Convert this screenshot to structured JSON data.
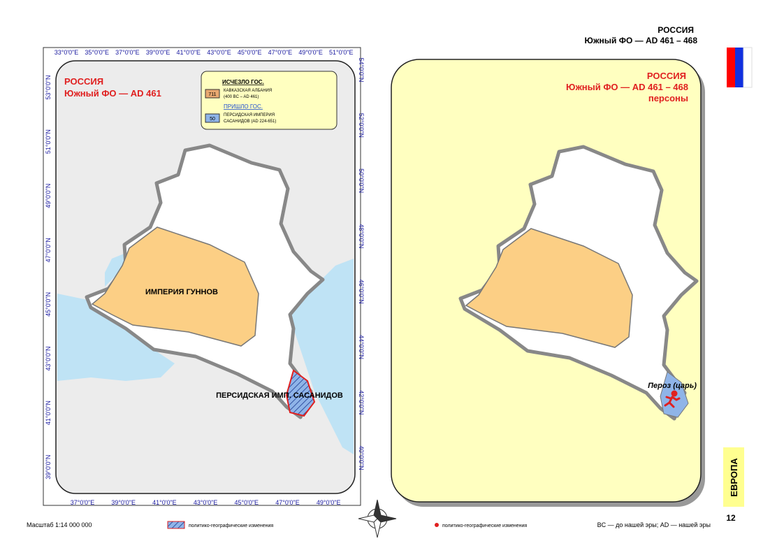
{
  "header": {
    "country": "РОССИЯ",
    "subtitle": "Южный ФО — AD 461 – 468"
  },
  "left_map": {
    "title": "РОССИЯ",
    "subtitle": "Южный ФО — AD 461",
    "legend": {
      "gone_heading": "ИСЧЕЗЛО ГОС.",
      "gone_code": "711",
      "gone_name": "КАВКАЗСКАЯ АЛБАНИЯ",
      "gone_dates": "(400 BC – AD 461)",
      "came_heading": "ПРИШЛО ГОС.",
      "came_code": "50",
      "came_name": "ПЕРСИДСКАЯ ИМПЕРИЯ",
      "came_dates": "САСАНИДОВ (AD 224-651)"
    },
    "labels": [
      "ИМПЕРИЯ ГУННОВ",
      "ПЕРСИДСКАЯ ИМП. САСАНИДОВ"
    ],
    "top_axis": [
      "33°0'0\"E",
      "35°0'0\"E",
      "37°0'0\"E",
      "39°0'0\"E",
      "41°0'0\"E",
      "43°0'0\"E",
      "45°0'0\"E",
      "47°0'0\"E",
      "49°0'0\"E",
      "51°0'0\"E"
    ],
    "bottom_axis": [
      "37°0'0\"E",
      "39°0'0\"E",
      "41°0'0\"E",
      "43°0'0\"E",
      "45°0'0\"E",
      "47°0'0\"E",
      "49°0'0\"E"
    ],
    "left_axis": [
      "53°0'0\"N",
      "51°0'0\"N",
      "49°0'0\"N",
      "47°0'0\"N",
      "45°0'0\"N",
      "43°0'0\"N",
      "41°0'0\"N",
      "39°0'0\"N"
    ],
    "right_axis": [
      "54°0'0\"N",
      "52°0'0\"N",
      "50°0'0\"N",
      "48°0'0\"N",
      "46°0'0\"N",
      "44°0'0\"N",
      "42°0'0\"N",
      "40°0'0\"N"
    ]
  },
  "right_map": {
    "title": "РОССИЯ",
    "subtitle": "Южный ФО — AD 461 – 468",
    "caption": "персоны",
    "person": "Пероз (царь)"
  },
  "footer": {
    "scale": "Масштаб 1:14 000 000",
    "changes_legend": "политико-географические изменения",
    "persons_legend": "политико-географические изменения",
    "era_note": "BC — до нашей эры; AD — нашей эры"
  },
  "side_tab": "ЕВРОПА",
  "page_number": "12"
}
